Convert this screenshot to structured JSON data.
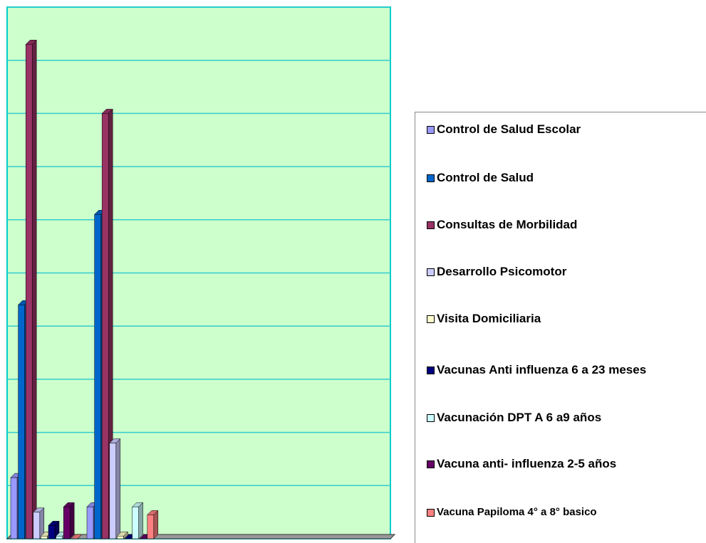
{
  "chart_data": {
    "type": "bar3d",
    "categories": [
      null,
      null
    ],
    "series": [
      {
        "name": "Control de Salud Escolar",
        "color": "#9999ff",
        "values": [
          1.15,
          0.6
        ]
      },
      {
        "name": "Control de Salud",
        "color": "#0066cc",
        "values": [
          4.4,
          6.1
        ]
      },
      {
        "name": "Consultas de Morbilidad",
        "color": "#993366",
        "values": [
          9.3,
          8.0
        ]
      },
      {
        "name": "Desarrollo Psicomotor",
        "color": "#ccccff",
        "values": [
          0.5,
          1.8
        ]
      },
      {
        "name": "Visita Domiciliaria",
        "color": "#ffffcc",
        "values": [
          0.05,
          0.05
        ]
      },
      {
        "name": "Vacunas Anti influenza 6 a 23 meses",
        "color": "#000080",
        "values": [
          0.25,
          0
        ]
      },
      {
        "name": "Vacunación DPT A 6 a9 años",
        "color": "#ccffff",
        "values": [
          0.05,
          0.6
        ]
      },
      {
        "name": "Vacuna anti- influenza 2-5 años",
        "color": "#660066",
        "values": [
          0.6,
          0
        ]
      },
      {
        "name": "Vacuna Papiloma 4° a 8° basico",
        "color": "#ff8080",
        "values": [
          0,
          0.45
        ]
      }
    ],
    "ylim": [
      0,
      10
    ],
    "yticks": [
      0,
      1,
      2,
      3,
      4,
      5,
      6,
      7,
      8,
      9,
      10
    ],
    "grid": true
  }
}
